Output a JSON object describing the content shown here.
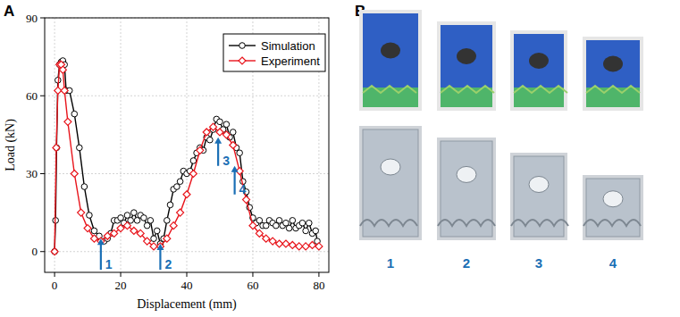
{
  "chart_data": {
    "type": "line",
    "panel_label": "A",
    "x_label": "Displacement (mm)",
    "y_label": "Load (kN)",
    "xlim": [
      -3,
      83
    ],
    "ylim": [
      -8,
      90
    ],
    "xticks": [
      0,
      20,
      40,
      60,
      80
    ],
    "yticks": [
      0,
      30,
      60,
      90
    ],
    "grid": true,
    "legend": "upper right",
    "series": [
      {
        "name": "Simulation",
        "color": "#000000",
        "marker": "circle",
        "line_style": "solid",
        "x": [
          0,
          0.3,
          0.6,
          1,
          1.5,
          2,
          2.5,
          3,
          3.5,
          4.5,
          6,
          7.5,
          9,
          10.5,
          12,
          13.5,
          15,
          16,
          17,
          18,
          19,
          20,
          21,
          22,
          23,
          24,
          25,
          26,
          27,
          28,
          29,
          30,
          31,
          32,
          33,
          34,
          35,
          36,
          37,
          38,
          39,
          40,
          41,
          42,
          43,
          44,
          45,
          46,
          47,
          48,
          49,
          50,
          51,
          52,
          53,
          54,
          55,
          56,
          57,
          58,
          59,
          60,
          61,
          62,
          63,
          64,
          65,
          66,
          67,
          68,
          69,
          70,
          71,
          72,
          73,
          74,
          75,
          76,
          77,
          78,
          79,
          79.5
        ],
        "values": [
          0,
          12,
          40,
          66,
          72,
          73,
          73.5,
          72,
          62,
          62,
          53,
          40,
          25,
          14,
          8,
          6,
          4,
          5,
          7,
          12,
          12,
          13,
          11,
          14,
          12,
          15,
          12,
          14,
          13,
          10,
          12,
          5,
          8,
          3,
          5,
          12,
          18,
          24,
          25,
          27,
          31,
          30,
          31,
          35,
          38,
          40,
          39,
          44,
          43,
          47,
          51,
          50,
          47,
          49,
          44,
          46,
          40,
          38,
          27,
          23,
          17,
          13,
          11,
          12,
          10,
          10,
          12,
          11,
          10,
          12,
          10,
          11,
          9,
          12,
          9,
          10,
          11,
          8,
          11,
          7,
          8,
          4
        ]
      },
      {
        "name": "Experiment",
        "color": "#e8141b",
        "marker": "diamond",
        "line_style": "solid",
        "x": [
          0,
          0.5,
          1,
          1.5,
          2,
          2.5,
          3,
          4,
          6,
          8,
          10,
          12,
          14,
          16,
          18,
          20,
          22,
          24,
          26,
          28,
          30,
          32,
          34,
          36,
          38,
          40,
          42,
          44,
          46,
          48,
          50,
          52,
          54,
          56,
          58,
          60,
          62,
          64,
          66,
          68,
          70,
          72,
          74,
          76,
          78,
          80
        ],
        "values": [
          0,
          40,
          62,
          72,
          72,
          70,
          62,
          50,
          30,
          15,
          9,
          5,
          4,
          6,
          7,
          9,
          10,
          8,
          7,
          4,
          2,
          2,
          5,
          10,
          15,
          22,
          30,
          39,
          46,
          48,
          46,
          45,
          41,
          31,
          20,
          10,
          7,
          5,
          4,
          3,
          3,
          2.5,
          2,
          2,
          2.5,
          2
        ]
      }
    ],
    "annotations": [
      {
        "label": "1",
        "x": 14,
        "y_start": -7,
        "y_end": 5
      },
      {
        "label": "2",
        "x": 32,
        "y_start": -7,
        "y_end": 3
      },
      {
        "label": "3",
        "x": 49.5,
        "y_start": 33,
        "y_end": 44
      },
      {
        "label": "4",
        "x": 54.5,
        "y_start": 22,
        "y_end": 33
      }
    ]
  },
  "panel_b": {
    "label": "B",
    "captions": [
      "1",
      "2",
      "3",
      "4"
    ]
  }
}
